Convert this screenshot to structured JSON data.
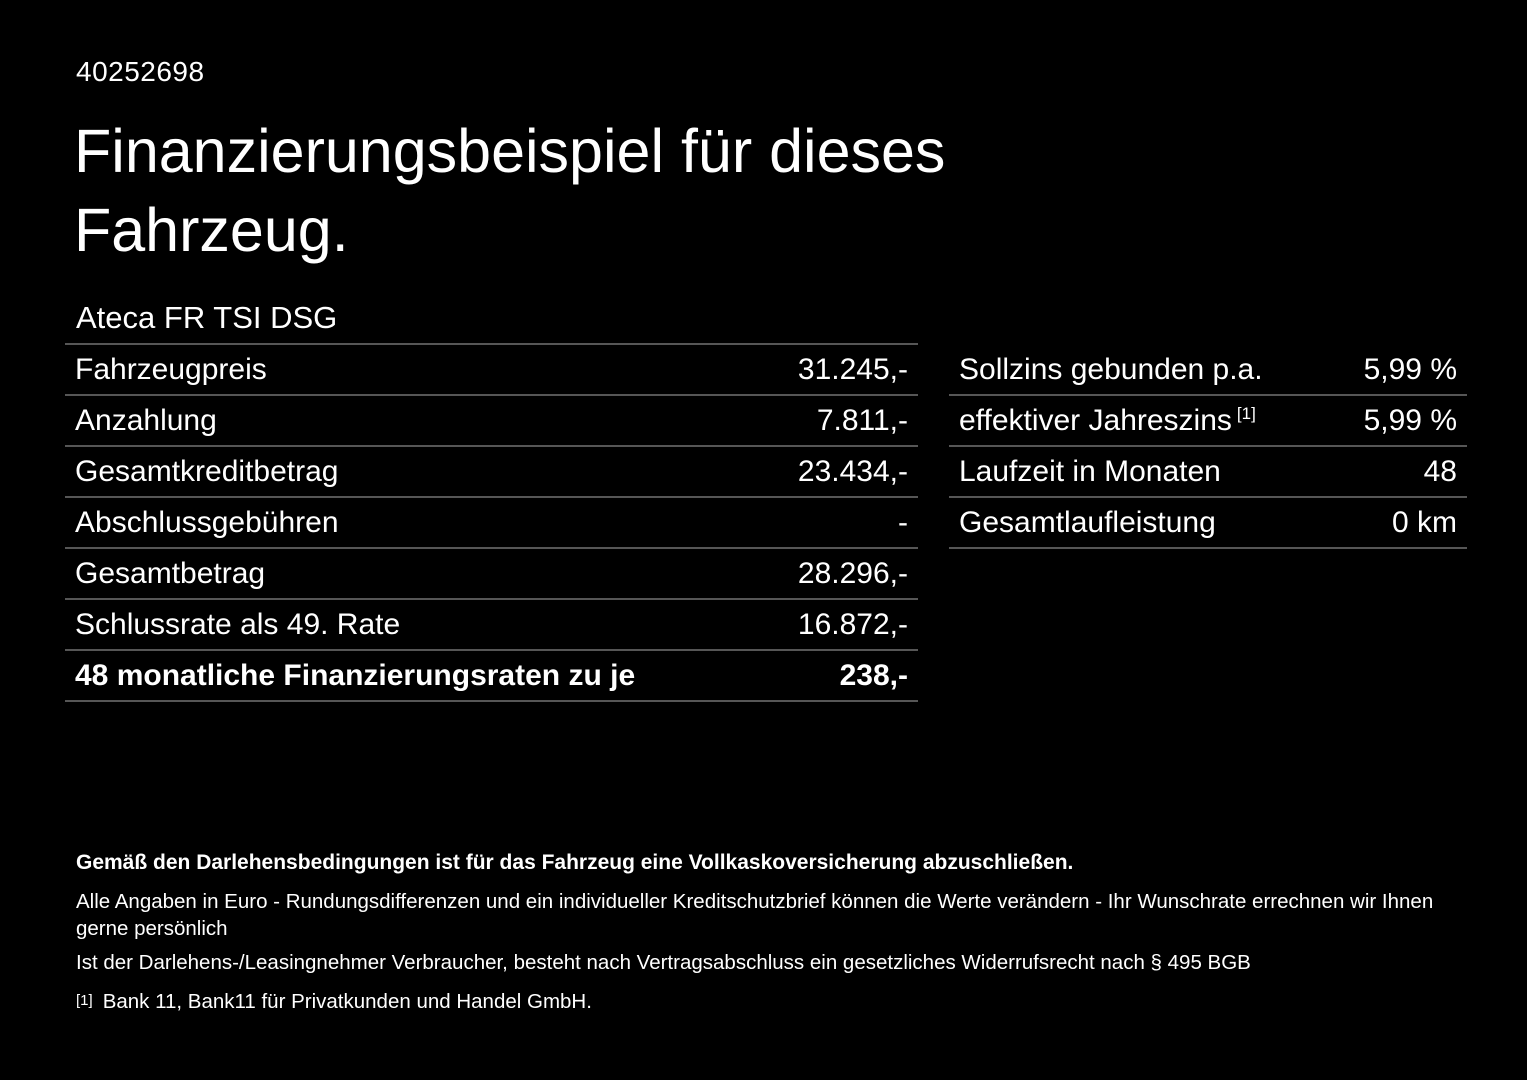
{
  "page": {
    "background": "#000000",
    "text_color": "#ffffff",
    "divider_color": "#565656"
  },
  "header": {
    "vehicle_id": "40252698",
    "title_line1": "Finanzierungsbeispiel für dieses",
    "title_line2": "Fahrzeug.",
    "subtitle": "Ateca FR TSI DSG"
  },
  "finance_table": {
    "rows": [
      {
        "label": "Fahrzeugpreis",
        "value": "31.245,-"
      },
      {
        "label": "Anzahlung",
        "value": "7.811,-"
      },
      {
        "label": "Gesamtkreditbetrag",
        "value": "23.434,-"
      },
      {
        "label": "Abschlussgebühren",
        "value": "-"
      },
      {
        "label": "Gesamtbetrag",
        "value": "28.296,-"
      },
      {
        "label": "Schlussrate als 49. Rate",
        "value": "16.872,-"
      },
      {
        "label": "48 monatliche Finanzierungsraten zu je",
        "value": "238,-"
      }
    ]
  },
  "conditions_table": {
    "rows": [
      {
        "label": "Sollzins gebunden p.a.",
        "value": "5,99 %"
      },
      {
        "label": "effektiver Jahreszins",
        "footnote_marker": "[1]",
        "value": "5,99 %"
      },
      {
        "label": "Laufzeit in Monaten",
        "value": "48"
      },
      {
        "label": "Gesamtlaufleistung",
        "value": "0 km"
      }
    ]
  },
  "footer": {
    "line1": "Gemäß den Darlehensbedingungen ist für das Fahrzeug eine Vollkaskoversicherung abzuschließen.",
    "line2": "Alle Angaben in Euro - Rundungsdifferenzen und ein individueller Kreditschutzbrief können die Werte verändern - Ihr Wunschrate errechnen wir Ihnen gerne persönlich",
    "line3": "Ist der Darlehens-/Leasingnehmer Verbraucher, besteht nach Vertragsabschluss ein gesetzliches Widerrufsrecht nach § 495 BGB",
    "footnote_marker": "[1]",
    "footnote_text": "Bank 11, Bank11 für Privatkunden und Handel GmbH."
  }
}
